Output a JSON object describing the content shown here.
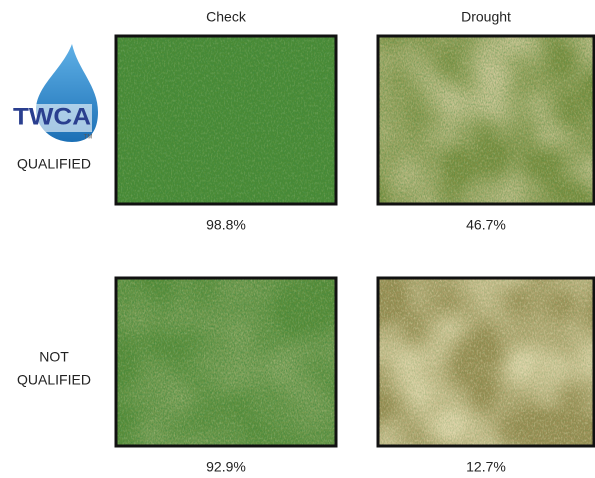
{
  "columns": [
    "Check",
    "Drought"
  ],
  "logo": {
    "text": "TWCA",
    "mark": "TM"
  },
  "rows": [
    {
      "label_lines": [
        "QUALIFIED"
      ],
      "values": [
        "98.8%",
        "46.7%"
      ]
    },
    {
      "label_lines": [
        "NOT",
        "QUALIFIED"
      ],
      "values": [
        "92.9%",
        "12.7%"
      ]
    }
  ]
}
